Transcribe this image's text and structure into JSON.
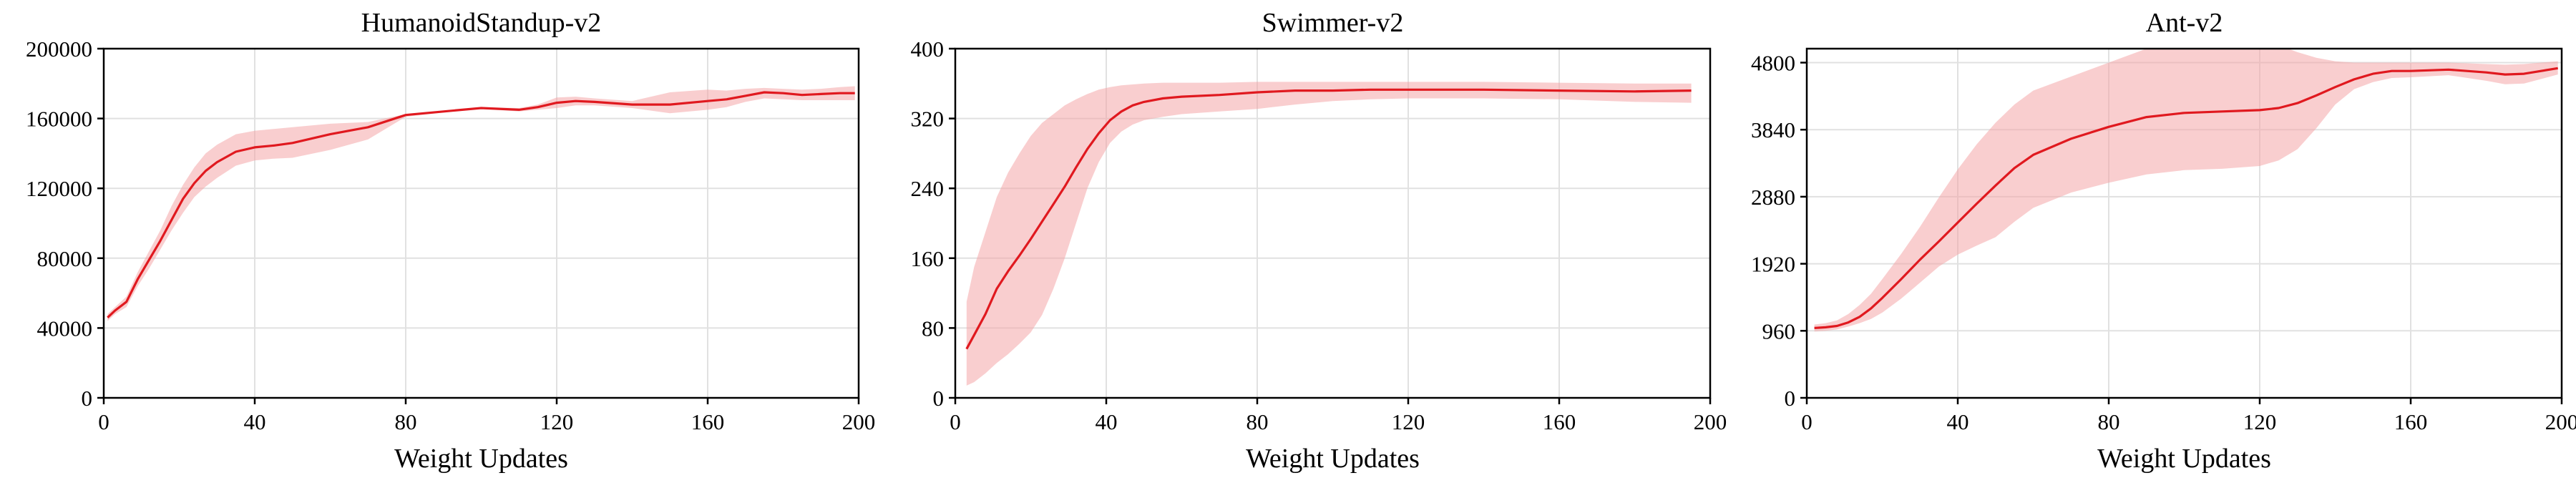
{
  "colors": {
    "line": "#e0191f",
    "band": "#f4a6a8",
    "grid": "#e1e1e1",
    "axis": "#000000"
  },
  "chart_data": [
    {
      "type": "line",
      "title": "HumanoidStandup-v2",
      "xlabel": "Weight Updates",
      "ylabel": "",
      "xlim": [
        0,
        200
      ],
      "ylim": [
        0,
        200000
      ],
      "xticks": [
        0,
        40,
        80,
        120,
        160,
        200
      ],
      "yticks": [
        0,
        40000,
        80000,
        120000,
        160000,
        200000
      ],
      "xtick_labels": [
        "0",
        "40",
        "80",
        "120",
        "160",
        "200"
      ],
      "ytick_labels": [
        "0",
        "40000",
        "80000",
        "120000",
        "160000",
        "200000"
      ],
      "grid": true,
      "x": [
        1,
        3,
        6,
        9,
        12,
        15,
        18,
        21,
        24,
        27,
        30,
        35,
        40,
        45,
        50,
        60,
        70,
        80,
        90,
        100,
        110,
        115,
        120,
        125,
        130,
        140,
        150,
        160,
        165,
        170,
        175,
        180,
        185,
        190,
        195,
        199
      ],
      "series": [
        {
          "mean": [
            46000,
            50000,
            55000,
            68000,
            79000,
            90000,
            102000,
            114000,
            123000,
            130000,
            135000,
            141000,
            143500,
            144500,
            146000,
            151000,
            155000,
            162000,
            164000,
            166000,
            165000,
            166500,
            169000,
            170000,
            169500,
            168000,
            168000,
            170000,
            171000,
            173000,
            175000,
            174500,
            173500,
            174000,
            174500,
            174500
          ],
          "upper": [
            48000,
            52000,
            58000,
            72000,
            84000,
            96000,
            110000,
            122000,
            132000,
            140000,
            145000,
            151000,
            153000,
            154000,
            155000,
            157000,
            158000,
            162500,
            164500,
            166500,
            166000,
            168000,
            172000,
            172500,
            171500,
            170000,
            175000,
            176500,
            176000,
            177000,
            177500,
            177000,
            176500,
            177000,
            178000,
            178500
          ],
          "lower": [
            44000,
            48000,
            52000,
            64000,
            74000,
            85000,
            96000,
            106000,
            115000,
            121000,
            126000,
            133000,
            136000,
            137000,
            137500,
            142000,
            148000,
            161000,
            163500,
            165500,
            164000,
            165000,
            166000,
            167500,
            167500,
            166000,
            163000,
            165000,
            166500,
            169500,
            171500,
            171000,
            170500,
            170500,
            170500,
            170500
          ]
        }
      ]
    },
    {
      "type": "line",
      "title": "Swimmer-v2",
      "xlabel": "Weight Updates",
      "ylabel": "",
      "xlim": [
        0,
        200
      ],
      "ylim": [
        0,
        400
      ],
      "xticks": [
        0,
        40,
        80,
        120,
        160,
        200
      ],
      "yticks": [
        0,
        80,
        160,
        240,
        320,
        400
      ],
      "xtick_labels": [
        "0",
        "40",
        "80",
        "120",
        "160",
        "200"
      ],
      "ytick_labels": [
        "0",
        "80",
        "160",
        "240",
        "320",
        "400"
      ],
      "grid": true,
      "x": [
        3,
        5,
        8,
        11,
        14,
        17,
        20,
        23,
        26,
        29,
        32,
        35,
        38,
        41,
        44,
        47,
        50,
        55,
        60,
        70,
        80,
        90,
        100,
        110,
        120,
        140,
        160,
        180,
        195
      ],
      "series": [
        {
          "mean": [
            56,
            72,
            96,
            125,
            145,
            163,
            182,
            202,
            222,
            242,
            264,
            285,
            303,
            318,
            328,
            335,
            339,
            343,
            345,
            347,
            350,
            352,
            352,
            353,
            353,
            353,
            352,
            351,
            352
          ],
          "upper": [
            110,
            150,
            190,
            230,
            258,
            280,
            300,
            315,
            325,
            335,
            342,
            348,
            353,
            356,
            358,
            359,
            360,
            361,
            361,
            361,
            362,
            362,
            362,
            362,
            362,
            362,
            361,
            360,
            360
          ],
          "lower": [
            14,
            18,
            28,
            40,
            50,
            62,
            75,
            95,
            125,
            160,
            200,
            240,
            270,
            292,
            305,
            313,
            318,
            322,
            325,
            328,
            331,
            336,
            340,
            342,
            343,
            343,
            342,
            339,
            338
          ]
        }
      ]
    },
    {
      "type": "line",
      "title": "Ant-v2",
      "xlabel": "Weight Updates",
      "ylabel": "",
      "xlim": [
        0,
        200
      ],
      "ylim": [
        0,
        5000
      ],
      "xticks": [
        0,
        40,
        80,
        120,
        160,
        200
      ],
      "yticks": [
        0,
        960,
        1920,
        2880,
        3840,
        4800
      ],
      "xtick_labels": [
        "0",
        "40",
        "80",
        "120",
        "160",
        "200"
      ],
      "ytick_labels": [
        "0",
        "960",
        "1920",
        "2880",
        "3840",
        "4800"
      ],
      "grid": true,
      "x": [
        2,
        5,
        8,
        11,
        14,
        17,
        20,
        25,
        30,
        35,
        40,
        45,
        50,
        55,
        60,
        70,
        80,
        90,
        100,
        110,
        120,
        125,
        130,
        135,
        140,
        145,
        150,
        155,
        160,
        170,
        180,
        185,
        190,
        199
      ],
      "series": [
        {
          "mean": [
            1000,
            1010,
            1030,
            1080,
            1160,
            1280,
            1430,
            1700,
            1980,
            2240,
            2510,
            2780,
            3040,
            3290,
            3480,
            3710,
            3880,
            4020,
            4080,
            4100,
            4120,
            4150,
            4220,
            4330,
            4450,
            4560,
            4640,
            4680,
            4680,
            4700,
            4660,
            4630,
            4640,
            4720
          ],
          "upper": [
            1050,
            1070,
            1110,
            1200,
            1330,
            1490,
            1700,
            2060,
            2450,
            2870,
            3270,
            3630,
            3940,
            4200,
            4400,
            4600,
            4800,
            5000,
            5100,
            5100,
            5100,
            5050,
            4950,
            4870,
            4820,
            4800,
            4800,
            4800,
            4800,
            4800,
            4780,
            4770,
            4780,
            4820
          ],
          "lower": [
            950,
            960,
            980,
            1020,
            1070,
            1130,
            1220,
            1420,
            1650,
            1880,
            2050,
            2180,
            2300,
            2520,
            2720,
            2940,
            3080,
            3200,
            3260,
            3280,
            3320,
            3400,
            3560,
            3860,
            4200,
            4420,
            4520,
            4580,
            4590,
            4620,
            4540,
            4490,
            4500,
            4630
          ]
        }
      ]
    }
  ]
}
